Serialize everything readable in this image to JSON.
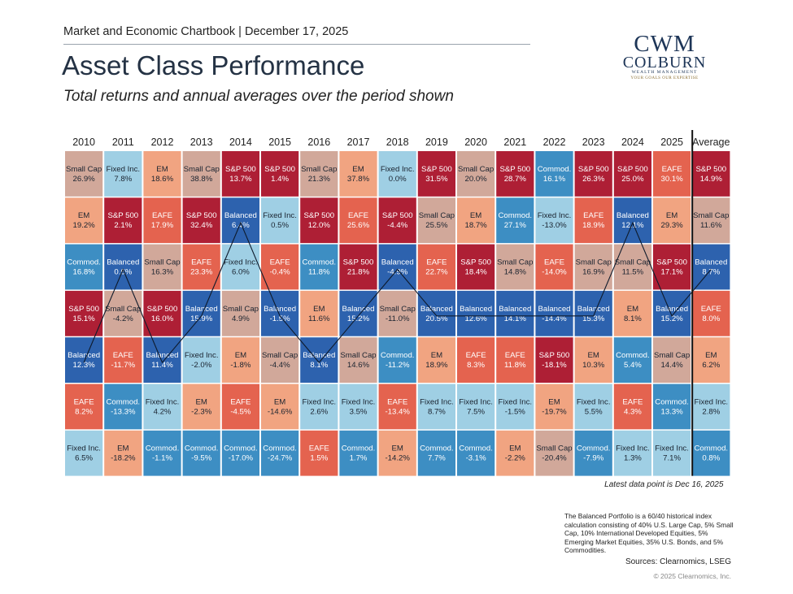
{
  "header": {
    "chartbook": "Market and Economic Chartbook | December 17, 2025",
    "title": "Asset Class Performance",
    "subtitle": "Total returns and annual averages over the period shown"
  },
  "logo": {
    "mark": "CWM",
    "name": "COLBURN",
    "sub": "WEALTH MANAGEMENT",
    "tagline": "YOUR GOALS OUR EXPERTISE"
  },
  "colors": {
    "S&P 500": "#ae1f35",
    "Small Cap": "#d1a89a",
    "EM": "#f1a481",
    "EAFE": "#e4634f",
    "Fixed Inc.": "#9fcfe4",
    "Commod.": "#3d8ec3",
    "Balanced": "#2d62ae"
  },
  "chart_data": {
    "type": "table",
    "columns": [
      "2010",
      "2011",
      "2012",
      "2013",
      "2014",
      "2015",
      "2016",
      "2017",
      "2018",
      "2019",
      "2020",
      "2021",
      "2022",
      "2023",
      "2024",
      "2025",
      "Average"
    ],
    "highlight_series": "Balanced",
    "note": "Latest data point is Dec 16, 2025",
    "ranks": [
      [
        [
          "Small Cap",
          "26.9%"
        ],
        [
          "Fixed Inc.",
          "7.8%"
        ],
        [
          "EM",
          "18.6%"
        ],
        [
          "Small Cap",
          "38.8%"
        ],
        [
          "S&P 500",
          "13.7%"
        ],
        [
          "S&P 500",
          "1.4%"
        ],
        [
          "Small Cap",
          "21.3%"
        ],
        [
          "EM",
          "37.8%"
        ],
        [
          "Fixed Inc.",
          "0.0%"
        ],
        [
          "S&P 500",
          "31.5%"
        ],
        [
          "Small Cap",
          "20.0%"
        ],
        [
          "S&P 500",
          "28.7%"
        ],
        [
          "Commod.",
          "16.1%"
        ],
        [
          "S&P 500",
          "26.3%"
        ],
        [
          "S&P 500",
          "25.0%"
        ],
        [
          "EAFE",
          "30.1%"
        ],
        [
          "S&P 500",
          "14.9%"
        ]
      ],
      [
        [
          "EM",
          "19.2%"
        ],
        [
          "S&P 500",
          "2.1%"
        ],
        [
          "EAFE",
          "17.9%"
        ],
        [
          "S&P 500",
          "32.4%"
        ],
        [
          "Balanced",
          "6.4%"
        ],
        [
          "Fixed Inc.",
          "0.5%"
        ],
        [
          "S&P 500",
          "12.0%"
        ],
        [
          "EAFE",
          "25.6%"
        ],
        [
          "S&P 500",
          "-4.4%"
        ],
        [
          "Small Cap",
          "25.5%"
        ],
        [
          "EM",
          "18.7%"
        ],
        [
          "Commod.",
          "27.1%"
        ],
        [
          "Fixed Inc.",
          "-13.0%"
        ],
        [
          "EAFE",
          "18.9%"
        ],
        [
          "Balanced",
          "12.1%"
        ],
        [
          "EM",
          "29.3%"
        ],
        [
          "Small Cap",
          "11.6%"
        ]
      ],
      [
        [
          "Commod.",
          "16.8%"
        ],
        [
          "Balanced",
          "0.6%"
        ],
        [
          "Small Cap",
          "16.3%"
        ],
        [
          "EAFE",
          "23.3%"
        ],
        [
          "Fixed Inc.",
          "6.0%"
        ],
        [
          "EAFE",
          "-0.4%"
        ],
        [
          "Commod.",
          "11.8%"
        ],
        [
          "S&P 500",
          "21.8%"
        ],
        [
          "Balanced",
          "-4.9%"
        ],
        [
          "EAFE",
          "22.7%"
        ],
        [
          "S&P 500",
          "18.4%"
        ],
        [
          "Small Cap",
          "14.8%"
        ],
        [
          "EAFE",
          "-14.0%"
        ],
        [
          "Small Cap",
          "16.9%"
        ],
        [
          "Small Cap",
          "11.5%"
        ],
        [
          "S&P 500",
          "17.1%"
        ],
        [
          "Balanced",
          "8.7%"
        ]
      ],
      [
        [
          "S&P 500",
          "15.1%"
        ],
        [
          "Small Cap",
          "-4.2%"
        ],
        [
          "S&P 500",
          "16.0%"
        ],
        [
          "Balanced",
          "15.9%"
        ],
        [
          "Small Cap",
          "4.9%"
        ],
        [
          "Balanced",
          "-1.5%"
        ],
        [
          "EM",
          "11.6%"
        ],
        [
          "Balanced",
          "15.2%"
        ],
        [
          "Small Cap",
          "-11.0%"
        ],
        [
          "Balanced",
          "20.5%"
        ],
        [
          "Balanced",
          "12.6%"
        ],
        [
          "Balanced",
          "14.1%"
        ],
        [
          "Balanced",
          "-14.4%"
        ],
        [
          "Balanced",
          "15.3%"
        ],
        [
          "EM",
          "8.1%"
        ],
        [
          "Balanced",
          "15.2%"
        ],
        [
          "EAFE",
          "8.0%"
        ]
      ],
      [
        [
          "Balanced",
          "12.3%"
        ],
        [
          "EAFE",
          "-11.7%"
        ],
        [
          "Balanced",
          "11.4%"
        ],
        [
          "Fixed Inc.",
          "-2.0%"
        ],
        [
          "EM",
          "-1.8%"
        ],
        [
          "Small Cap",
          "-4.4%"
        ],
        [
          "Balanced",
          "8.1%"
        ],
        [
          "Small Cap",
          "14.6%"
        ],
        [
          "Commod.",
          "-11.2%"
        ],
        [
          "EM",
          "18.9%"
        ],
        [
          "EAFE",
          "8.3%"
        ],
        [
          "EAFE",
          "11.8%"
        ],
        [
          "S&P 500",
          "-18.1%"
        ],
        [
          "EM",
          "10.3%"
        ],
        [
          "Commod.",
          "5.4%"
        ],
        [
          "Small Cap",
          "14.4%"
        ],
        [
          "EM",
          "6.2%"
        ]
      ],
      [
        [
          "EAFE",
          "8.2%"
        ],
        [
          "Commod.",
          "-13.3%"
        ],
        [
          "Fixed Inc.",
          "4.2%"
        ],
        [
          "EM",
          "-2.3%"
        ],
        [
          "EAFE",
          "-4.5%"
        ],
        [
          "EM",
          "-14.6%"
        ],
        [
          "Fixed Inc.",
          "2.6%"
        ],
        [
          "Fixed Inc.",
          "3.5%"
        ],
        [
          "EAFE",
          "-13.4%"
        ],
        [
          "Fixed Inc.",
          "8.7%"
        ],
        [
          "Fixed Inc.",
          "7.5%"
        ],
        [
          "Fixed Inc.",
          "-1.5%"
        ],
        [
          "EM",
          "-19.7%"
        ],
        [
          "Fixed Inc.",
          "5.5%"
        ],
        [
          "EAFE",
          "4.3%"
        ],
        [
          "Commod.",
          "13.3%"
        ],
        [
          "Fixed Inc.",
          "2.8%"
        ]
      ],
      [
        [
          "Fixed Inc.",
          "6.5%"
        ],
        [
          "EM",
          "-18.2%"
        ],
        [
          "Commod.",
          "-1.1%"
        ],
        [
          "Commod.",
          "-9.5%"
        ],
        [
          "Commod.",
          "-17.0%"
        ],
        [
          "Commod.",
          "-24.7%"
        ],
        [
          "EAFE",
          "1.5%"
        ],
        [
          "Commod.",
          "1.7%"
        ],
        [
          "EM",
          "-14.2%"
        ],
        [
          "Commod.",
          "7.7%"
        ],
        [
          "Commod.",
          "-3.1%"
        ],
        [
          "EM",
          "-2.2%"
        ],
        [
          "Small Cap",
          "-20.4%"
        ],
        [
          "Commod.",
          "-7.9%"
        ],
        [
          "Fixed Inc.",
          "1.3%"
        ],
        [
          "Fixed Inc.",
          "7.1%"
        ],
        [
          "Commod.",
          "0.8%"
        ]
      ]
    ]
  },
  "footer": {
    "note": "The Balanced Portfolio is a 60/40 historical index calculation consisting of 40% U.S. Large Cap, 5% Small Cap, 10% International Developed Equities, 5% Emerging Market Equities, 35% U.S. Bonds, and 5% Commodities.",
    "sources": "Sources: Clearnomics, LSEG",
    "copyright": "© 2025 Clearnomics, Inc."
  }
}
